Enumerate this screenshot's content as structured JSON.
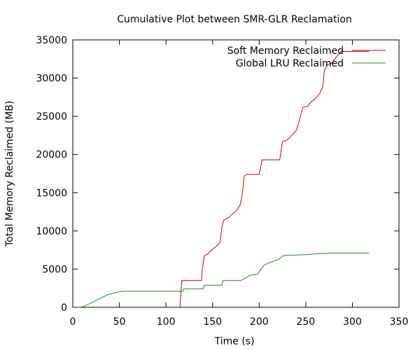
{
  "chart_data": {
    "type": "line",
    "title": "Cumulative Plot between SMR-GLR Reclamation",
    "xlabel": "Time (s)",
    "ylabel": "Total Memory Reclaimed (MB)",
    "xlim": [
      0,
      350
    ],
    "ylim": [
      0,
      35000
    ],
    "xticks": [
      0,
      50,
      100,
      150,
      200,
      250,
      300,
      350
    ],
    "yticks": [
      0,
      5000,
      10000,
      15000,
      20000,
      25000,
      30000,
      35000
    ],
    "grid": false,
    "legend_position": "top-right",
    "series": [
      {
        "name": "Soft Memory Reclaimed",
        "color": "#cc0000",
        "points": [
          [
            115,
            0
          ],
          [
            116,
            2000
          ],
          [
            117,
            3500
          ],
          [
            138,
            3500
          ],
          [
            139,
            5000
          ],
          [
            141,
            6700
          ],
          [
            145,
            7000
          ],
          [
            150,
            7600
          ],
          [
            155,
            8100
          ],
          [
            158,
            8500
          ],
          [
            160,
            10500
          ],
          [
            162,
            11400
          ],
          [
            168,
            11800
          ],
          [
            172,
            12300
          ],
          [
            176,
            12700
          ],
          [
            180,
            13500
          ],
          [
            182,
            15000
          ],
          [
            184,
            17200
          ],
          [
            187,
            17400
          ],
          [
            200,
            17400
          ],
          [
            203,
            19300
          ],
          [
            222,
            19300
          ],
          [
            225,
            21700
          ],
          [
            230,
            21900
          ],
          [
            235,
            22500
          ],
          [
            240,
            23200
          ],
          [
            247,
            26200
          ],
          [
            252,
            26300
          ],
          [
            255,
            26800
          ],
          [
            260,
            27300
          ],
          [
            265,
            28000
          ],
          [
            268,
            28800
          ],
          [
            270,
            31000
          ],
          [
            273,
            31700
          ],
          [
            278,
            32000
          ],
          [
            283,
            32800
          ],
          [
            288,
            33500
          ],
          [
            318,
            33500
          ]
        ]
      },
      {
        "name": "Global LRU Reclaimed",
        "color": "#00a000",
        "points": [
          [
            5,
            0
          ],
          [
            10,
            50
          ],
          [
            15,
            300
          ],
          [
            20,
            600
          ],
          [
            25,
            900
          ],
          [
            30,
            1200
          ],
          [
            35,
            1500
          ],
          [
            40,
            1750
          ],
          [
            45,
            1900
          ],
          [
            50,
            2050
          ],
          [
            55,
            2100
          ],
          [
            60,
            2100
          ],
          [
            118,
            2100
          ],
          [
            119,
            2400
          ],
          [
            140,
            2400
          ],
          [
            141,
            2900
          ],
          [
            160,
            2900
          ],
          [
            161,
            3500
          ],
          [
            180,
            3500
          ],
          [
            185,
            3800
          ],
          [
            190,
            4200
          ],
          [
            198,
            4300
          ],
          [
            202,
            5000
          ],
          [
            205,
            5500
          ],
          [
            210,
            5800
          ],
          [
            215,
            6000
          ],
          [
            220,
            6200
          ],
          [
            225,
            6700
          ],
          [
            230,
            6800
          ],
          [
            250,
            6900
          ],
          [
            260,
            7000
          ],
          [
            280,
            7100
          ],
          [
            318,
            7100
          ]
        ]
      }
    ]
  }
}
